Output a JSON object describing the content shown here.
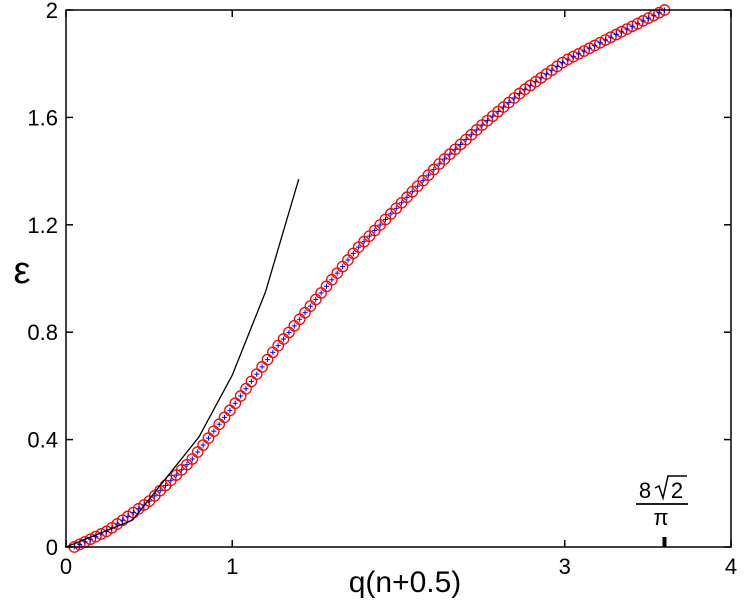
{
  "chart_data": {
    "type": "scatter",
    "xlabel": "q(n+0.5)",
    "ylabel": "ε",
    "xlim": [
      0,
      4
    ],
    "ylim": [
      0,
      2
    ],
    "x_ticks": [
      "0",
      "1",
      "3",
      "4"
    ],
    "y_ticks": [
      "0",
      "0.4",
      "0.8",
      "1.2",
      "1.6",
      "2"
    ],
    "grid": false,
    "annotation": {
      "numerator": "8",
      "radicand": "2",
      "denominator": "π",
      "x": 3.6
    },
    "series": [
      {
        "marker": "circle",
        "color": "#ff0000",
        "x_start": 0.05,
        "x_step": 0.0322,
        "x_end": 3.6,
        "x": [
          0.05,
          0.25,
          0.5,
          0.75,
          1.0,
          1.25,
          1.5,
          1.75,
          2.0,
          2.25,
          2.5,
          2.75,
          3.0,
          3.25,
          3.6
        ],
        "y": [
          0.0,
          0.06,
          0.17,
          0.32,
          0.52,
          0.73,
          0.92,
          1.11,
          1.27,
          1.43,
          1.57,
          1.7,
          1.81,
          1.89,
          2.0
        ]
      },
      {
        "marker": "plus",
        "color": "#0000ff",
        "x_start": 0.05,
        "x_step": 0.0322,
        "x_end": 3.6,
        "x": [
          0.05,
          0.25,
          0.5,
          0.75,
          1.0,
          1.25,
          1.5,
          1.75,
          2.0,
          2.25,
          2.5,
          2.75,
          3.0,
          3.25,
          3.6
        ],
        "y": [
          0.0,
          0.06,
          0.17,
          0.32,
          0.52,
          0.73,
          0.92,
          1.11,
          1.27,
          1.43,
          1.57,
          1.7,
          1.81,
          1.89,
          2.0
        ]
      },
      {
        "marker": "line",
        "color": "#000000",
        "x": [
          0.0,
          0.4,
          0.8,
          1.0,
          1.2,
          1.4
        ],
        "y": [
          0.0,
          0.1,
          0.41,
          0.64,
          0.95,
          1.37
        ]
      }
    ]
  }
}
